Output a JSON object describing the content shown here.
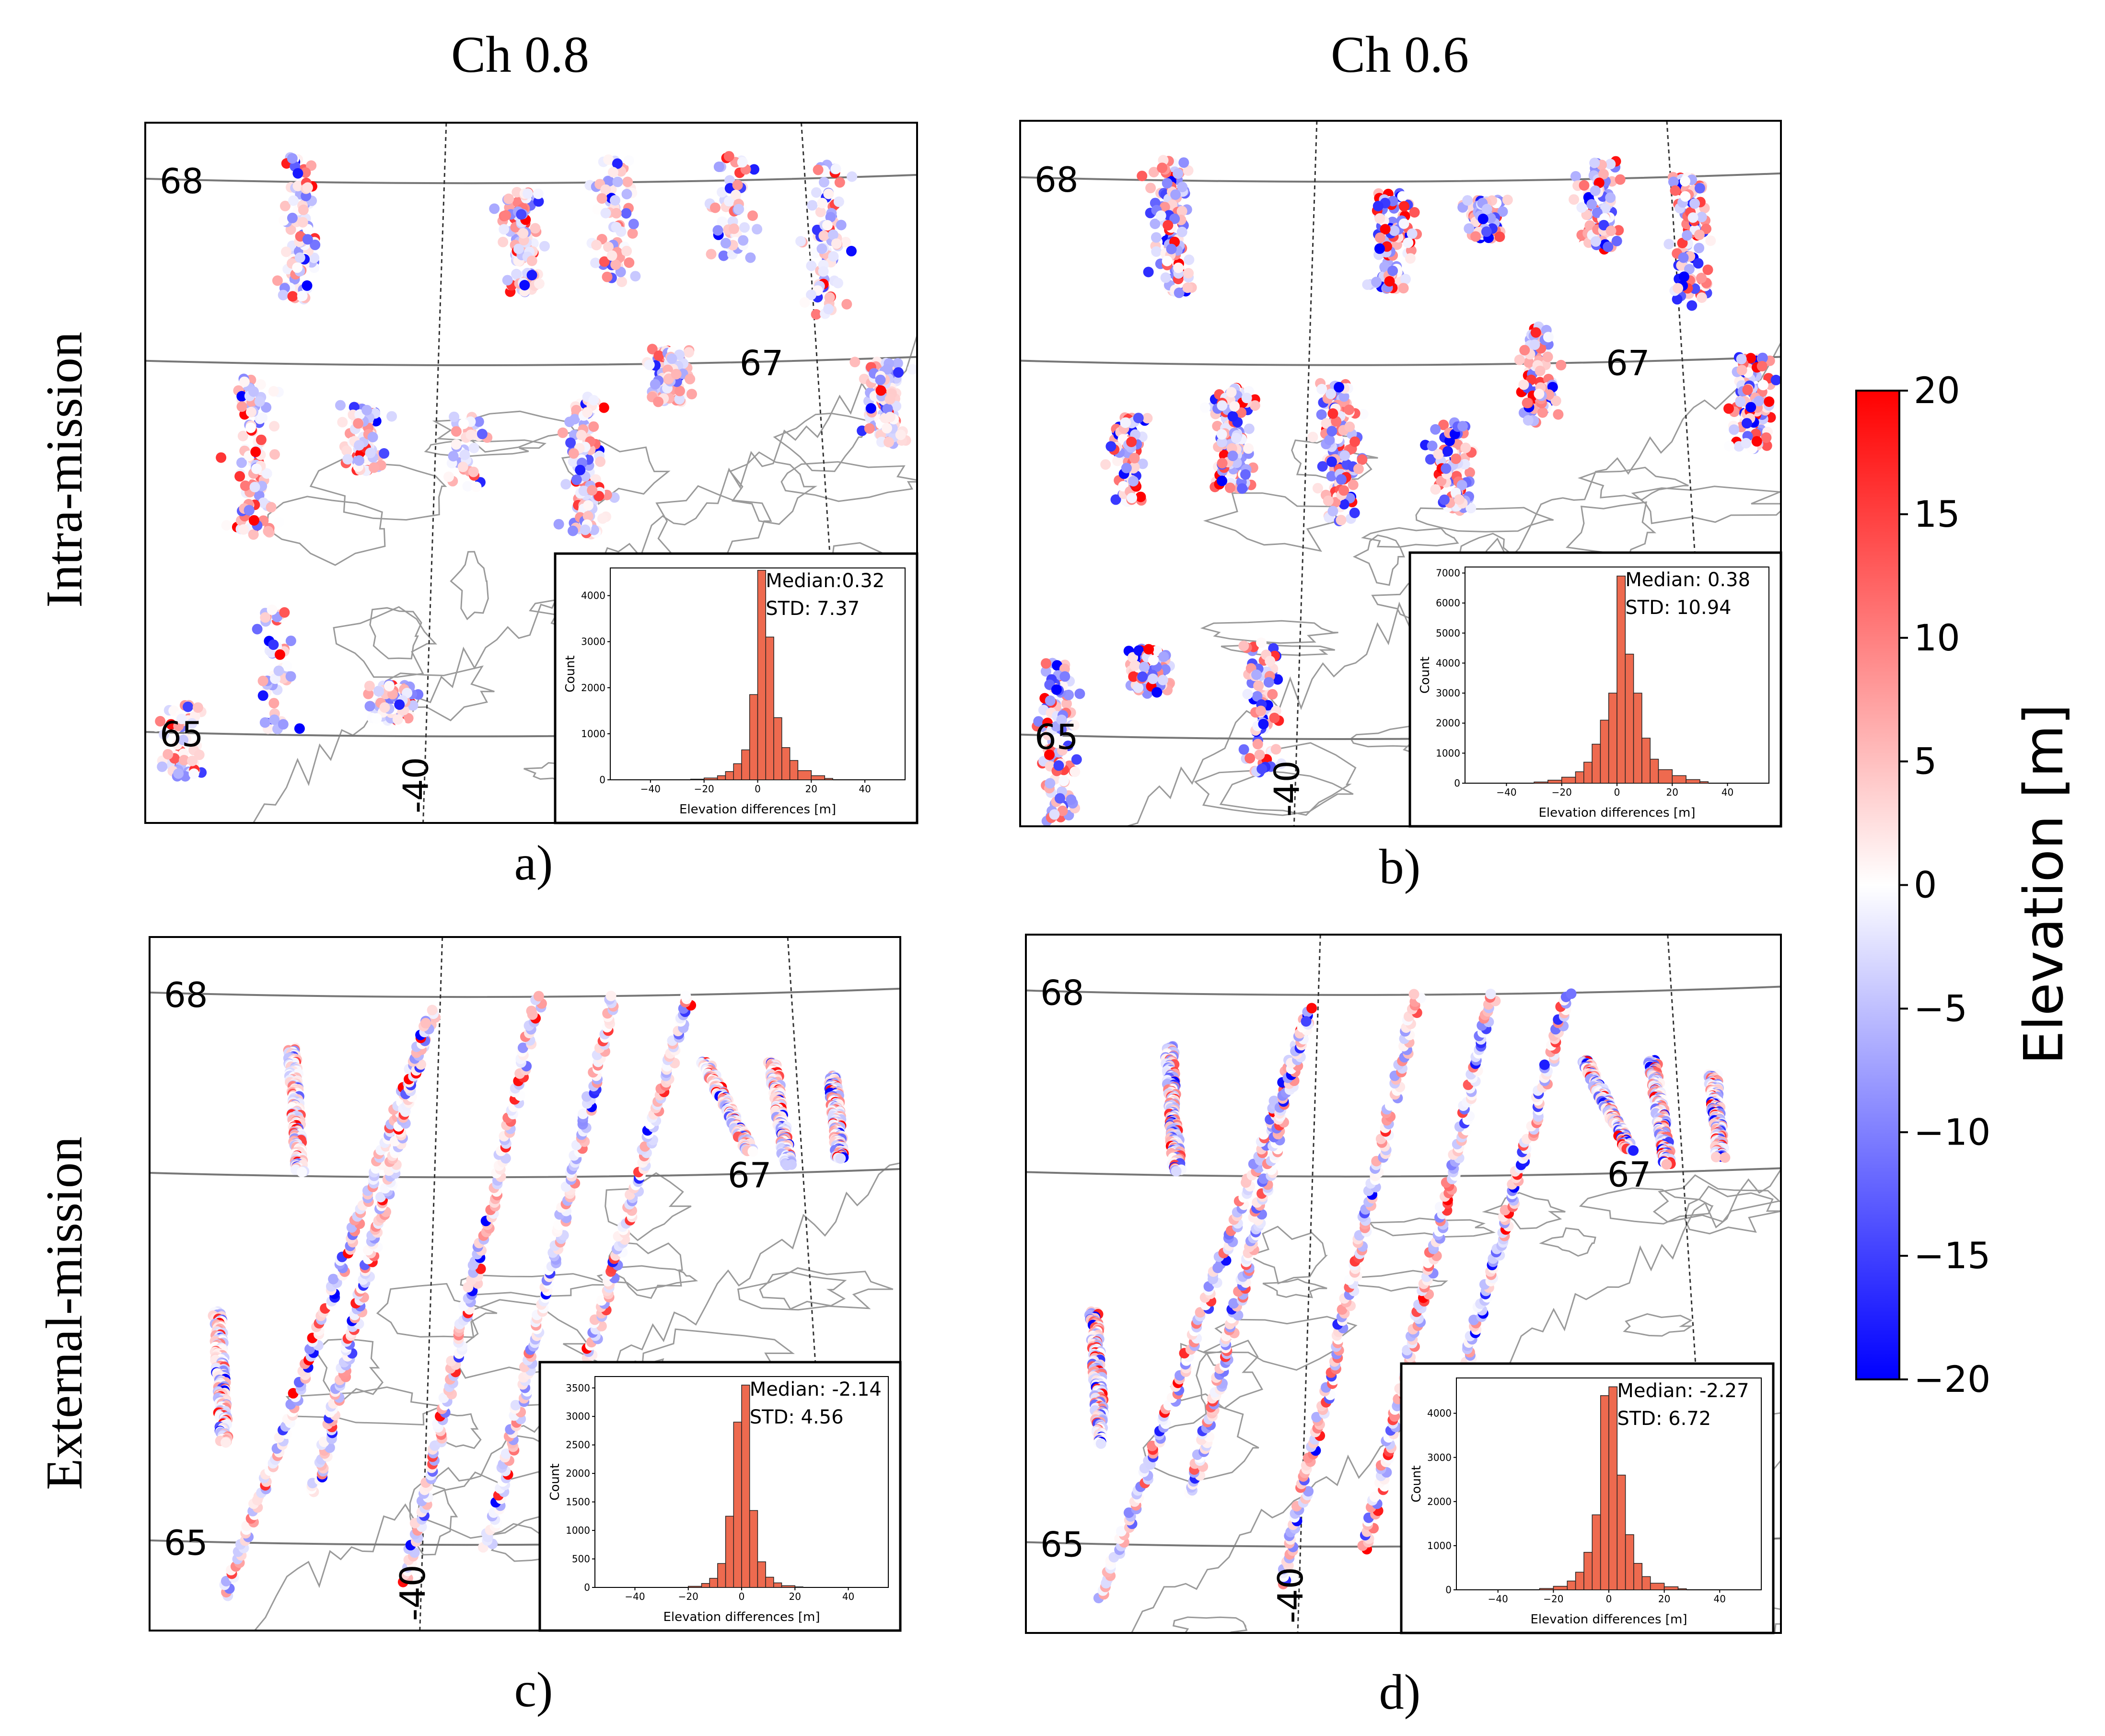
{
  "columns": [
    "Ch 0.8",
    "Ch 0.6"
  ],
  "rows": [
    "Intra-mission",
    "External-mission"
  ],
  "chart_data": {
    "type": "scatter",
    "title": "",
    "description_panels": "2x2 grid of maps (scatter of elevation differences along tracks) with inset histograms",
    "panels": [
      {
        "label": "a)",
        "column": "Ch 0.8",
        "row": "Intra-mission",
        "lat_labels": [
          "68",
          "67",
          "65"
        ],
        "lon_labels": [
          "-40"
        ],
        "track_style": "clusters",
        "inset": {
          "type": "bar",
          "median_text": "Median:0.32",
          "std_text": "STD: 7.37",
          "xlabel": "Elevation differences [m]",
          "ylabel": "Count",
          "xticks": [
            "−40",
            "−20",
            "0",
            "20",
            "40"
          ],
          "xlim": [
            -55,
            55
          ],
          "yticks": [
            "0",
            "1000",
            "2000",
            "3000",
            "4000"
          ],
          "ylim": [
            0,
            4600
          ],
          "bins": [
            -25,
            -20,
            -15,
            -12,
            -9,
            -6,
            -3,
            0,
            3,
            6,
            9,
            12,
            15,
            20,
            25
          ],
          "values": [
            15,
            40,
            90,
            180,
            350,
            650,
            1850,
            4550,
            3100,
            1350,
            700,
            420,
            200,
            90,
            30
          ]
        }
      },
      {
        "label": "b)",
        "column": "Ch 0.6",
        "row": "Intra-mission",
        "lat_labels": [
          "68",
          "67",
          "65"
        ],
        "lon_labels": [
          "-40"
        ],
        "track_style": "clusters",
        "inset": {
          "type": "bar",
          "median_text": "Median: 0.38",
          "std_text": "STD: 10.94",
          "xlabel": "Elevation differences [m]",
          "ylabel": "Count",
          "xticks": [
            "−40",
            "−20",
            "0",
            "20",
            "40"
          ],
          "xlim": [
            -55,
            55
          ],
          "yticks": [
            "0",
            "1000",
            "2000",
            "3000",
            "4000",
            "5000",
            "6000",
            "7000"
          ],
          "ylim": [
            0,
            7200
          ],
          "bins": [
            -30,
            -25,
            -20,
            -15,
            -12,
            -9,
            -6,
            -3,
            0,
            3,
            6,
            9,
            12,
            15,
            20,
            25,
            30
          ],
          "values": [
            40,
            100,
            200,
            380,
            700,
            1300,
            2100,
            3000,
            6900,
            4300,
            3000,
            1500,
            800,
            450,
            250,
            120,
            50
          ]
        }
      },
      {
        "label": "c)",
        "column": "Ch 0.8",
        "row": "External-mission",
        "lat_labels": [
          "68",
          "67",
          "65"
        ],
        "lon_labels": [
          "-40"
        ],
        "track_style": "lines",
        "inset": {
          "type": "bar",
          "median_text": "Median: -2.14",
          "std_text": "STD: 4.56",
          "xlabel": "Elevation differences [m]",
          "ylabel": "Count",
          "xticks": [
            "−40",
            "−20",
            "0",
            "20",
            "40"
          ],
          "xlim": [
            -55,
            55
          ],
          "yticks": [
            "0",
            "500",
            "1000",
            "1500",
            "2000",
            "2500",
            "3000",
            "3500"
          ],
          "ylim": [
            0,
            3700
          ],
          "bins": [
            -20,
            -15,
            -12,
            -9,
            -6,
            -3,
            0,
            3,
            6,
            9,
            12,
            15,
            20
          ],
          "values": [
            20,
            70,
            160,
            420,
            1250,
            2900,
            3550,
            1350,
            450,
            180,
            80,
            30,
            10
          ]
        }
      },
      {
        "label": "d)",
        "column": "Ch 0.6",
        "row": "External-mission",
        "lat_labels": [
          "68",
          "67",
          "65"
        ],
        "lon_labels": [
          "-40"
        ],
        "track_style": "lines",
        "inset": {
          "type": "bar",
          "median_text": "Median: -2.27",
          "std_text": "STD: 6.72",
          "xlabel": "Elevation differences [m]",
          "ylabel": "Count",
          "xticks": [
            "−40",
            "−20",
            "0",
            "20",
            "40"
          ],
          "xlim": [
            -55,
            55
          ],
          "yticks": [
            "0",
            "1000",
            "2000",
            "3000",
            "4000"
          ],
          "ylim": [
            0,
            4800
          ],
          "bins": [
            -25,
            -20,
            -15,
            -12,
            -9,
            -6,
            -3,
            0,
            3,
            6,
            9,
            12,
            15,
            20,
            25
          ],
          "values": [
            30,
            80,
            200,
            400,
            850,
            1700,
            4400,
            4600,
            2600,
            1250,
            600,
            300,
            150,
            70,
            25
          ]
        }
      }
    ],
    "colorbar": {
      "label": "Elevation [m]",
      "range": [
        -20,
        20
      ],
      "ticks": [
        "20",
        "15",
        "10",
        "5",
        "0",
        "−5",
        "−10",
        "−15",
        "−20"
      ],
      "colormap": "bwr",
      "colors": {
        "low": "#0000ff",
        "mid": "#ffffff",
        "high": "#ff0000"
      }
    }
  }
}
